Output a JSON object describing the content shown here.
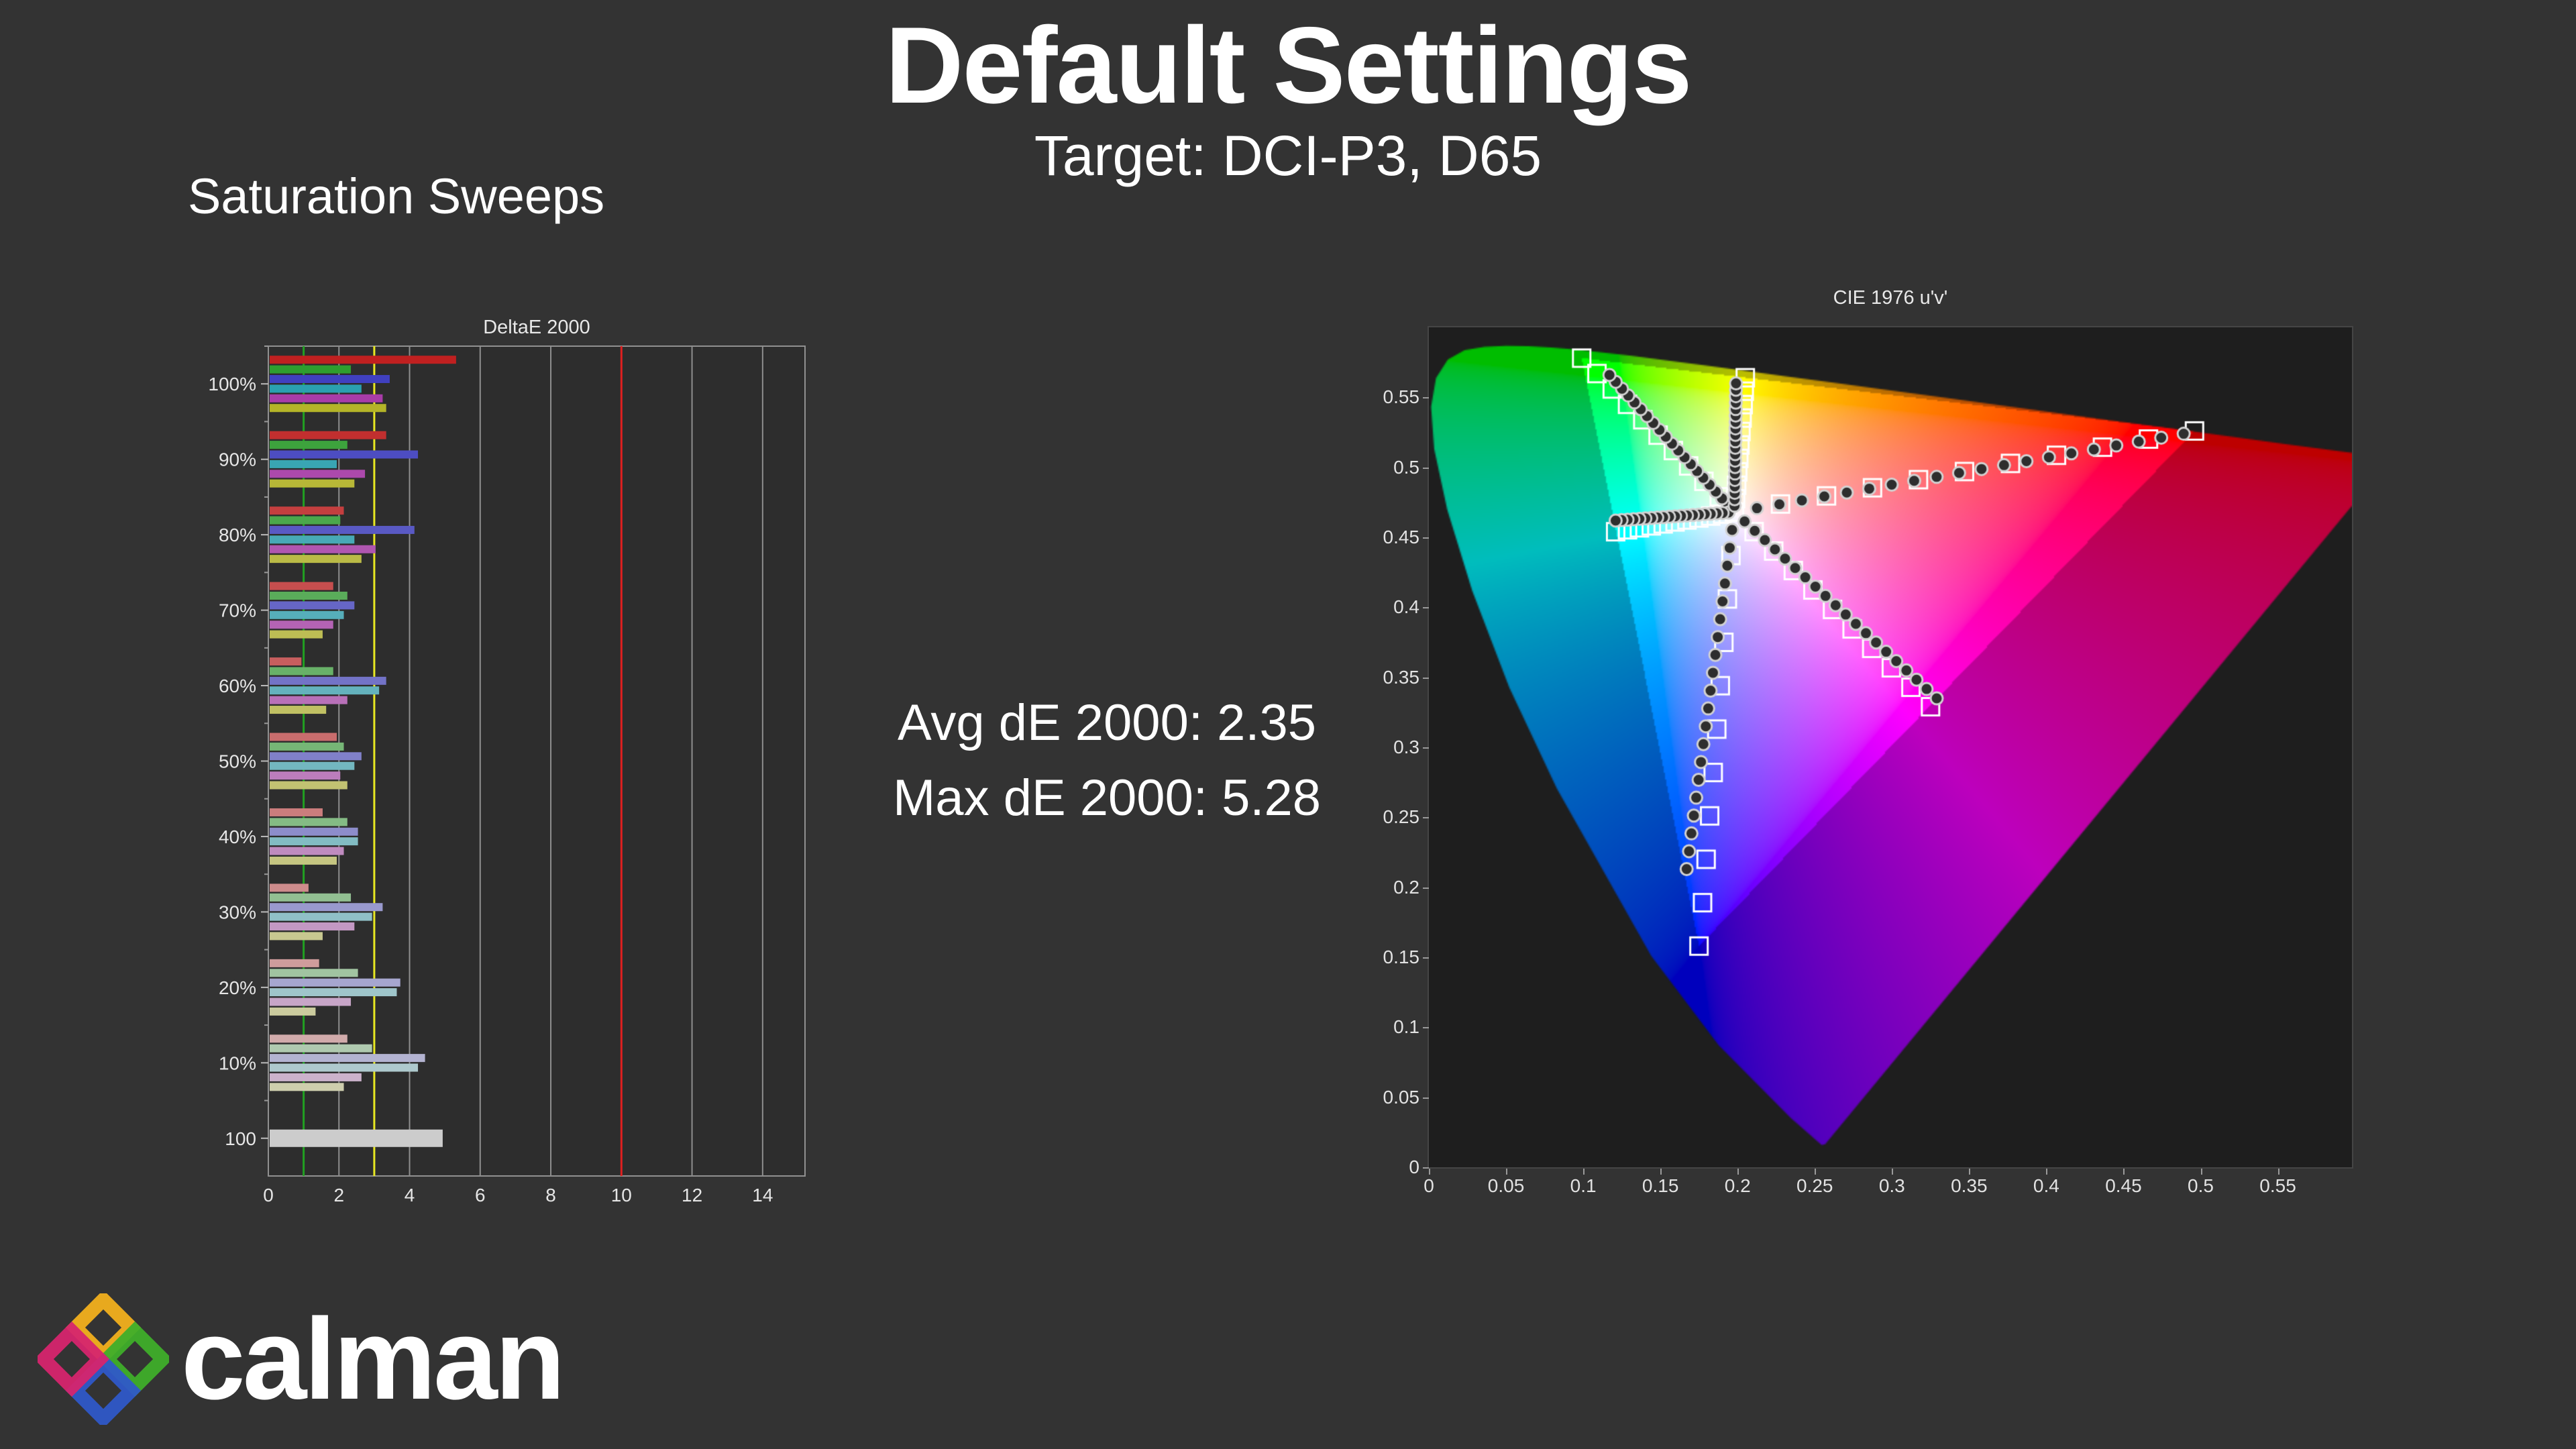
{
  "header": {
    "title": "Default Settings",
    "subtitle": "Target: DCI-P3, D65"
  },
  "section": {
    "label": "Saturation Sweeps"
  },
  "stats": {
    "avg_line": "Avg dE 2000: 2.35",
    "max_line": "Max dE 2000: 5.28",
    "avg_value": 2.35,
    "max_value": 5.28
  },
  "logo": {
    "text": "calman"
  },
  "colors": {
    "page_background": "#333333",
    "panel_background": "#2d2d2d",
    "cie_background": "#1e1e1e",
    "grid": "#8e8e8e",
    "text": "#e6e6e6"
  },
  "chart_data": [
    {
      "id": "deltae-2000-bars",
      "type": "bar",
      "title": "DeltaE 2000",
      "orientation": "horizontal",
      "xlabel": "",
      "ylabel": "",
      "xlim": [
        0,
        15.2
      ],
      "x_ticks": [
        0,
        2,
        4,
        6,
        8,
        10,
        12,
        14
      ],
      "grid": true,
      "reference_lines": [
        {
          "value": 1,
          "color": "#21a121",
          "meaning": "dE 1"
        },
        {
          "value": 3,
          "color": "#e8e821",
          "meaning": "dE 3"
        },
        {
          "value": 10,
          "color": "#e02020",
          "meaning": "dE 10"
        }
      ],
      "series_order": [
        "red",
        "green",
        "blue",
        "cyan",
        "magenta",
        "yellow"
      ],
      "series_base_colors": {
        "red": "#c02020",
        "green": "#2f9e2f",
        "blue": "#4040c0",
        "cyan": "#2aa0b0",
        "magenta": "#a83ca8",
        "yellow": "#b4b428"
      },
      "white_bar_color": "#cccccc",
      "groups": [
        {
          "label": "100%",
          "saturation": 1.0,
          "values": [
            5.28,
            2.3,
            3.4,
            2.6,
            3.2,
            3.3
          ]
        },
        {
          "label": "90%",
          "saturation": 0.9,
          "values": [
            3.3,
            2.2,
            4.2,
            1.9,
            2.7,
            2.4
          ]
        },
        {
          "label": "80%",
          "saturation": 0.8,
          "values": [
            2.1,
            2.0,
            4.1,
            2.4,
            3.0,
            2.6
          ]
        },
        {
          "label": "70%",
          "saturation": 0.7,
          "values": [
            1.8,
            2.2,
            2.4,
            2.1,
            1.8,
            1.5
          ]
        },
        {
          "label": "60%",
          "saturation": 0.6,
          "values": [
            0.9,
            1.8,
            3.3,
            3.1,
            2.2,
            1.6
          ]
        },
        {
          "label": "50%",
          "saturation": 0.5,
          "values": [
            1.9,
            2.1,
            2.6,
            2.4,
            2.0,
            2.2
          ]
        },
        {
          "label": "40%",
          "saturation": 0.4,
          "values": [
            1.5,
            2.2,
            2.5,
            2.5,
            2.1,
            1.9
          ]
        },
        {
          "label": "30%",
          "saturation": 0.3,
          "values": [
            1.1,
            2.3,
            3.2,
            2.9,
            2.4,
            1.5
          ]
        },
        {
          "label": "20%",
          "saturation": 0.2,
          "values": [
            1.4,
            2.5,
            3.7,
            3.6,
            2.3,
            1.3
          ]
        },
        {
          "label": "10%",
          "saturation": 0.1,
          "values": [
            2.2,
            2.9,
            4.4,
            4.2,
            2.6,
            2.1
          ]
        },
        {
          "label": "100",
          "saturation": null,
          "values": [
            4.9
          ],
          "single": "white"
        }
      ]
    },
    {
      "id": "cie-1976-uv",
      "type": "scatter",
      "title": "CIE 1976 u'v'",
      "xlim": [
        0,
        0.598
      ],
      "ylim": [
        0,
        0.6
      ],
      "x_ticks": {
        "values": [
          0,
          0.05,
          0.1,
          0.15,
          0.2,
          0.25,
          0.3,
          0.35,
          0.4,
          0.45,
          0.5,
          0.55
        ],
        "labels": [
          "0",
          "0.05",
          "0.1",
          "0.15",
          "0.2",
          "0.25",
          "0.3",
          "0.35",
          "0.4",
          "0.45",
          "0.5",
          "0.55"
        ]
      },
      "y_ticks": {
        "values": [
          0,
          0.05,
          0.1,
          0.15,
          0.2,
          0.25,
          0.3,
          0.35,
          0.4,
          0.45,
          0.5,
          0.55
        ],
        "labels": [
          "0",
          "0.05",
          "0.1",
          "0.15",
          "0.2",
          "0.25",
          "0.3",
          "0.35",
          "0.4",
          "0.45",
          "0.5",
          "0.55"
        ]
      },
      "target_gamut": "DCI-P3",
      "white_point": {
        "name": "D65",
        "u": 0.198,
        "v": 0.468
      },
      "gamut_corners": {
        "red": [
          0.496,
          0.526
        ],
        "green": [
          0.099,
          0.578
        ],
        "blue": [
          0.175,
          0.158
        ]
      },
      "secondary_points": {
        "cyan": [
          0.121,
          0.454
        ],
        "magenta": [
          0.325,
          0.329
        ],
        "yellow": [
          0.205,
          0.564
        ]
      },
      "saturation_levels_pct": [
        10,
        20,
        30,
        40,
        50,
        60,
        70,
        80,
        90,
        100
      ],
      "marker_styles": {
        "target": "open-white-square",
        "measured": "dark-circle"
      },
      "sweeps": [
        {
          "name": "red",
          "end": [
            0.496,
            0.526
          ],
          "measured_drift": [
            -0.007,
            -0.002
          ]
        },
        {
          "name": "green",
          "end": [
            0.099,
            0.578
          ],
          "measured_drift": [
            0.018,
            -0.012
          ]
        },
        {
          "name": "blue",
          "end": [
            0.175,
            0.158
          ],
          "measured_drift": [
            -0.008,
            0.055
          ]
        },
        {
          "name": "cyan",
          "end": [
            0.121,
            0.454
          ],
          "measured_drift": [
            0.0,
            0.008
          ]
        },
        {
          "name": "magenta",
          "end": [
            0.325,
            0.329
          ],
          "measured_drift": [
            0.004,
            0.006
          ]
        },
        {
          "name": "yellow",
          "end": [
            0.205,
            0.564
          ],
          "measured_drift": [
            -0.006,
            -0.004
          ]
        }
      ]
    }
  ]
}
